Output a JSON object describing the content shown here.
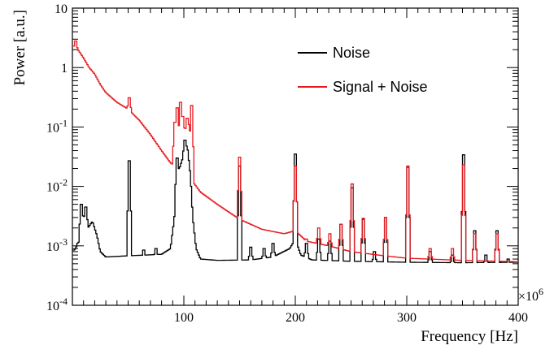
{
  "chart_data": {
    "type": "line",
    "xlabel": "Frequency [Hz]",
    "ylabel": "Power [a.u.]",
    "x_multiplier": "×10",
    "x_multiplier_exp": "6",
    "xlim": [
      0,
      400
    ],
    "ylim": [
      0.0001,
      10
    ],
    "yscale": "log",
    "x_ticks": [
      {
        "value": 100,
        "label": "100"
      },
      {
        "value": 200,
        "label": "200"
      },
      {
        "value": 300,
        "label": "300"
      },
      {
        "value": 400,
        "label": "400"
      }
    ],
    "y_ticks": [
      {
        "value": 10,
        "base": "10",
        "exp": ""
      },
      {
        "value": 1,
        "base": "1",
        "exp": ""
      },
      {
        "value": 0.1,
        "base": "10",
        "exp": "-1"
      },
      {
        "value": 0.01,
        "base": "10",
        "exp": "-2"
      },
      {
        "value": 0.001,
        "base": "10",
        "exp": "-3"
      },
      {
        "value": 0.0001,
        "base": "10",
        "exp": "-4"
      }
    ],
    "legend_position": "top-right",
    "series": [
      {
        "name": "Noise",
        "color": "#000000",
        "baseline": [
          [
            2,
            0.00085
          ],
          [
            6,
            0.0012
          ],
          [
            10,
            0.0028
          ],
          [
            14,
            0.002
          ],
          [
            18,
            0.0026
          ],
          [
            22,
            0.0015
          ],
          [
            25,
            0.0008
          ],
          [
            30,
            0.00065
          ],
          [
            50,
            0.00068
          ],
          [
            65,
            0.0007
          ],
          [
            80,
            0.00072
          ],
          [
            88,
            0.0009
          ],
          [
            91,
            0.0025
          ],
          [
            93,
            0.006
          ],
          [
            96,
            0.02
          ],
          [
            99,
            0.03
          ],
          [
            103,
            0.05
          ],
          [
            106,
            0.015
          ],
          [
            108,
            0.003
          ],
          [
            111,
            0.0009
          ],
          [
            115,
            0.0006
          ],
          [
            130,
            0.00057
          ],
          [
            160,
            0.00058
          ],
          [
            180,
            0.00065
          ],
          [
            195,
            0.0009
          ],
          [
            200,
            0.0013
          ],
          [
            205,
            0.0007
          ],
          [
            215,
            0.00058
          ],
          [
            250,
            0.00055
          ],
          [
            300,
            0.00053
          ],
          [
            350,
            0.00052
          ],
          [
            400,
            0.00053
          ]
        ],
        "spikes": [
          [
            5,
            0.0011
          ],
          [
            8,
            0.005
          ],
          [
            12,
            0.0045
          ],
          [
            51,
            0.027
          ],
          [
            64,
            0.00085
          ],
          [
            75,
            0.0009
          ],
          [
            94,
            0.03
          ],
          [
            101,
            0.06
          ],
          [
            150,
            0.022
          ],
          [
            160,
            0.00095
          ],
          [
            172,
            0.0009
          ],
          [
            180,
            0.0011
          ],
          [
            190,
            0.0008
          ],
          [
            200,
            0.035
          ],
          [
            210,
            0.0011
          ],
          [
            221,
            0.0013
          ],
          [
            231,
            0.0012
          ],
          [
            241,
            0.0023
          ],
          [
            251,
            0.0095
          ],
          [
            261,
            0.0028
          ],
          [
            271,
            0.0008
          ],
          [
            281,
            0.003
          ],
          [
            301,
            0.021
          ],
          [
            321,
            0.0008
          ],
          [
            341,
            0.0007
          ],
          [
            351,
            0.034
          ],
          [
            361,
            0.0018
          ],
          [
            371,
            0.0007
          ],
          [
            381,
            0.0018
          ],
          [
            391,
            0.0006
          ]
        ]
      },
      {
        "name": "Signal + Noise",
        "color": "#e8191e",
        "baseline": [
          [
            2,
            2.3
          ],
          [
            5,
            2.0
          ],
          [
            10,
            1.45
          ],
          [
            15,
            1.0
          ],
          [
            20,
            0.78
          ],
          [
            25,
            0.52
          ],
          [
            30,
            0.38
          ],
          [
            40,
            0.26
          ],
          [
            50,
            0.2
          ],
          [
            60,
            0.13
          ],
          [
            70,
            0.075
          ],
          [
            80,
            0.04
          ],
          [
            88,
            0.025
          ],
          [
            92,
            0.022
          ],
          [
            95,
            0.05
          ],
          [
            98,
            0.07
          ],
          [
            102,
            0.08
          ],
          [
            105,
            0.05
          ],
          [
            108,
            0.012
          ],
          [
            115,
            0.008
          ],
          [
            130,
            0.005
          ],
          [
            150,
            0.0028
          ],
          [
            170,
            0.0019
          ],
          [
            190,
            0.0016
          ],
          [
            200,
            0.0018
          ],
          [
            210,
            0.0012
          ],
          [
            230,
            0.001
          ],
          [
            250,
            0.0008
          ],
          [
            280,
            0.00068
          ],
          [
            300,
            0.00062
          ],
          [
            350,
            0.00057
          ],
          [
            400,
            0.00054
          ]
        ],
        "spikes": [
          [
            3,
            2.8
          ],
          [
            51,
            0.31
          ],
          [
            92,
            0.12
          ],
          [
            94,
            0.21
          ],
          [
            96,
            0.1
          ],
          [
            97,
            0.26
          ],
          [
            99,
            0.15
          ],
          [
            101,
            0.09
          ],
          [
            103,
            0.14
          ],
          [
            104,
            0.11
          ],
          [
            107,
            0.23
          ],
          [
            150,
            0.031
          ],
          [
            200,
            0.022
          ],
          [
            210,
            0.0013
          ],
          [
            221,
            0.002
          ],
          [
            231,
            0.0016
          ],
          [
            241,
            0.0023
          ],
          [
            251,
            0.011
          ],
          [
            261,
            0.0029
          ],
          [
            281,
            0.003
          ],
          [
            301,
            0.022
          ],
          [
            321,
            0.0009
          ],
          [
            341,
            0.0009
          ],
          [
            351,
            0.023
          ],
          [
            361,
            0.0016
          ],
          [
            381,
            0.0016
          ]
        ]
      }
    ]
  }
}
